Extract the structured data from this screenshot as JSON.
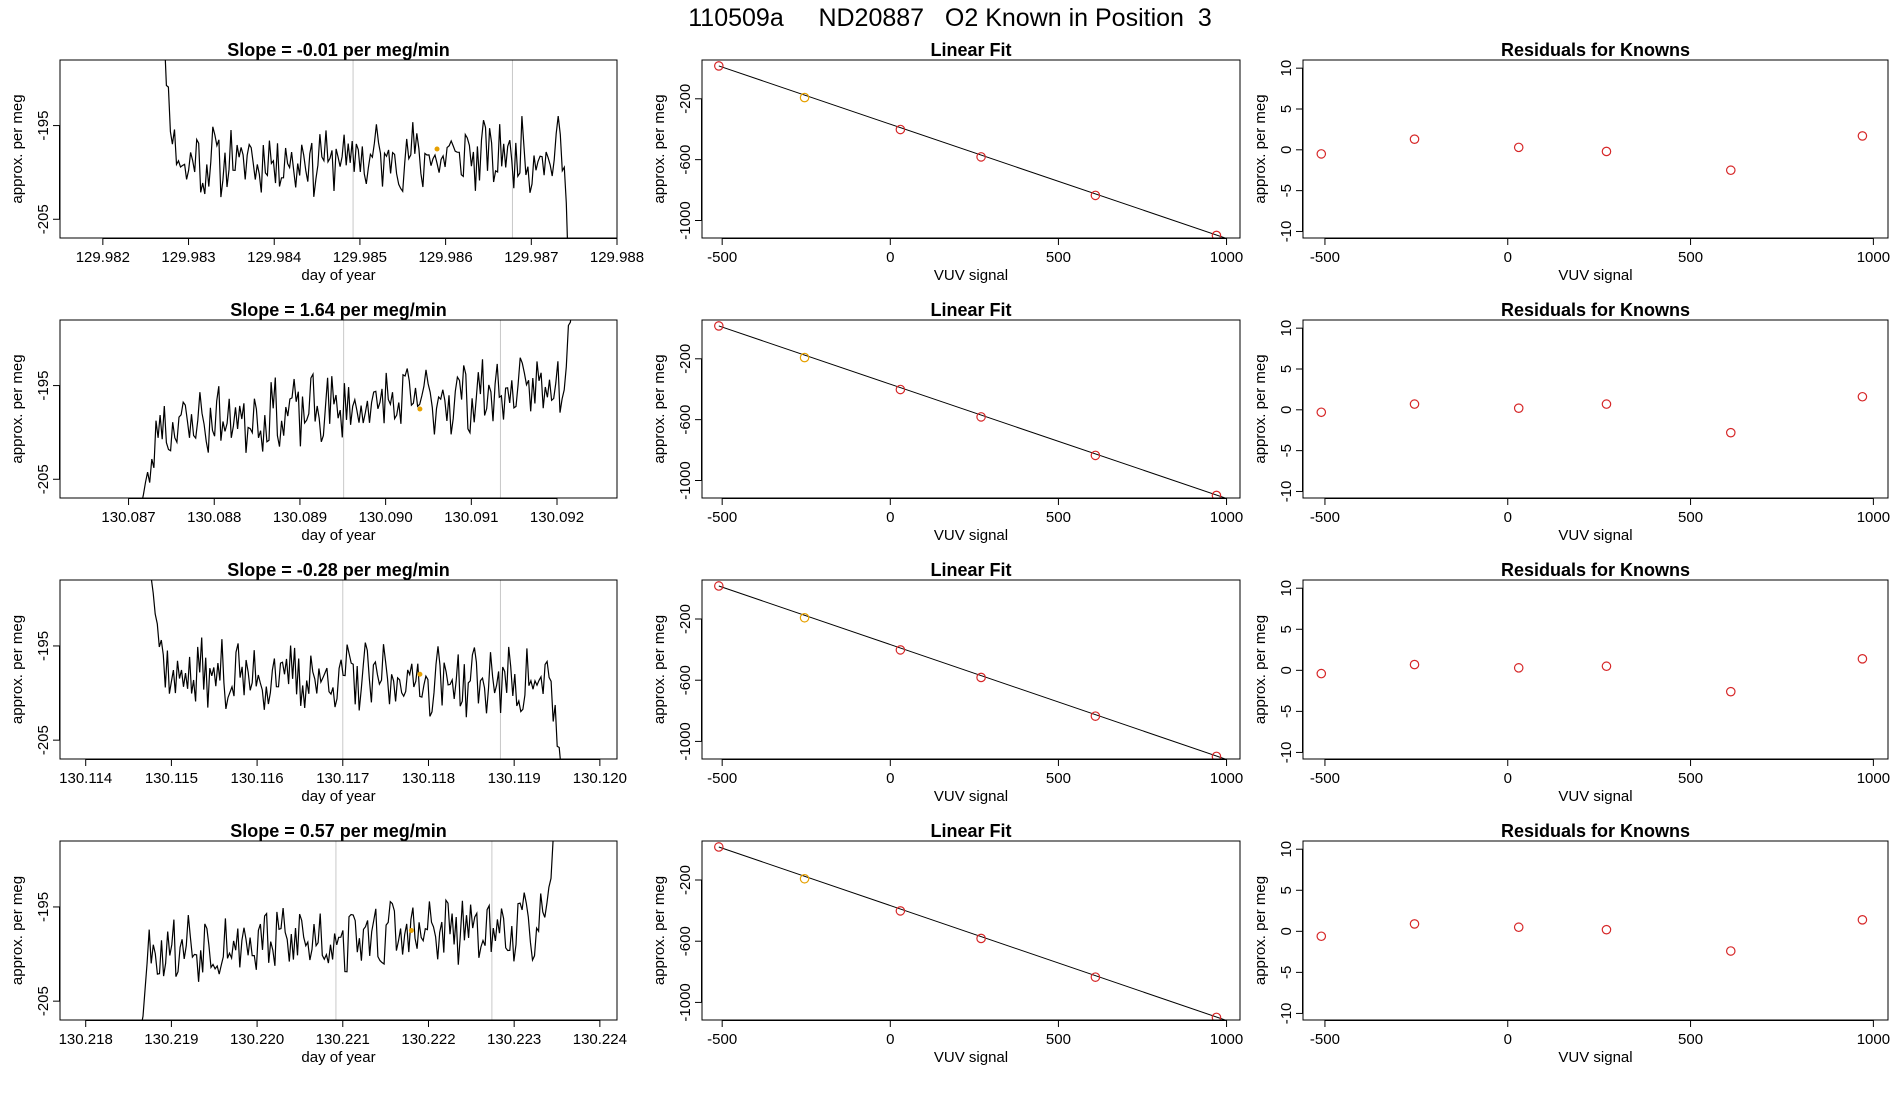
{
  "page": {
    "title": "110509a     ND20887   O2 Known in Position  3"
  },
  "colors": {
    "line": "#000000",
    "known_point": "#d62728",
    "highlight_point": "#e6a000",
    "marker_line": "#c8c8c8",
    "fit_line": "#000000"
  },
  "labels": {
    "trace_ylabel": "approx. per meg",
    "trace_xlabel": "day of year",
    "fit_title": "Linear Fit",
    "fit_xlabel": "VUV signal",
    "fit_ylabel": "approx. per meg",
    "resid_title": "Residuals for Knowns",
    "resid_xlabel": "VUV signal",
    "resid_ylabel": "approx. per meg"
  },
  "chart_data": [
    {
      "type": "line",
      "title": "Slope =  -0.01  per meg/min",
      "xlabel": "day of year",
      "ylabel": "approx. per meg",
      "xlim": [
        129.9815,
        129.988
      ],
      "ylim": [
        -207,
        -188
      ],
      "xticks": [
        129.982,
        129.983,
        129.984,
        129.985,
        129.986,
        129.987,
        129.988
      ],
      "xtick_labels": [
        "129.982",
        "129.983",
        "129.984",
        "129.985",
        "129.986",
        "129.987",
        "129.988"
      ],
      "yticks": [
        -195,
        -205
      ],
      "ytick_labels": [
        "-195",
        "-205"
      ],
      "x_start": 129.9826,
      "x_end": 129.98755,
      "y_start": -175,
      "y_end": -230,
      "seed": 11,
      "baseline_start": -199,
      "baseline_end": -198,
      "vlines": [
        129.98492,
        129.98678
      ],
      "marker": {
        "x": 129.9859,
        "y": -197.5
      }
    },
    {
      "type": "line",
      "title": "Slope =  1.64  per meg/min",
      "xlabel": "day of year",
      "ylabel": "approx. per meg",
      "xlim": [
        130.0862,
        130.0927
      ],
      "ylim": [
        -207,
        -188
      ],
      "xticks": [
        130.087,
        130.088,
        130.089,
        130.09,
        130.091,
        130.092
      ],
      "xtick_labels": [
        "130.087",
        "130.088",
        "130.089",
        "130.090",
        "130.091",
        "130.092"
      ],
      "yticks": [
        -195,
        -205
      ],
      "ytick_labels": [
        "-195",
        "-205"
      ],
      "x_start": 130.0871,
      "x_end": 130.09223,
      "y_start": -210,
      "y_end": -182,
      "seed": 23,
      "baseline_start": -199.5,
      "baseline_end": -195,
      "vlines": [
        130.08951,
        130.09134
      ],
      "marker": {
        "x": 130.0904,
        "y": -197.5
      }
    },
    {
      "type": "line",
      "title": "Slope =  -0.28  per meg/min",
      "xlabel": "day of year",
      "ylabel": "approx. per meg",
      "xlim": [
        130.1137,
        130.1202
      ],
      "ylim": [
        -207,
        -188
      ],
      "xticks": [
        130.114,
        130.115,
        130.116,
        130.117,
        130.118,
        130.119,
        130.12
      ],
      "xtick_labels": [
        "130.114",
        "130.115",
        "130.116",
        "130.117",
        "130.118",
        "130.119",
        "130.120"
      ],
      "yticks": [
        -195,
        -205
      ],
      "ytick_labels": [
        "-195",
        "-205"
      ],
      "x_start": 130.11467,
      "x_end": 130.11962,
      "y_start": -180,
      "y_end": -215,
      "seed": 37,
      "baseline_start": -198,
      "baseline_end": -199,
      "vlines": [
        130.117,
        130.11884
      ],
      "marker": {
        "x": 130.1179,
        "y": -198.0
      }
    },
    {
      "type": "line",
      "title": "Slope =  0.57  per meg/min",
      "xlabel": "day of year",
      "ylabel": "approx. per meg",
      "xlim": [
        130.2177,
        130.2242
      ],
      "ylim": [
        -207,
        -188
      ],
      "xticks": [
        130.218,
        130.219,
        130.22,
        130.221,
        130.222,
        130.223,
        130.224
      ],
      "xtick_labels": [
        "130.218",
        "130.219",
        "130.220",
        "130.221",
        "130.222",
        "130.223",
        "130.224"
      ],
      "yticks": [
        -195,
        -205
      ],
      "ytick_labels": [
        "-195",
        "-205"
      ],
      "x_start": 130.2185,
      "x_end": 130.22355,
      "y_start": -215,
      "y_end": -180,
      "seed": 53,
      "baseline_start": -199.5,
      "baseline_end": -197,
      "vlines": [
        130.22092,
        130.22274
      ],
      "marker": {
        "x": 130.2218,
        "y": -197.5
      }
    },
    {
      "type": "scatter",
      "title": "Linear Fit",
      "xlabel": "VUV signal",
      "ylabel": "approx. per meg",
      "xlim": [
        -560,
        1040
      ],
      "ylim": [
        -1115,
        55
      ],
      "xticks": [
        -500,
        0,
        500,
        1000
      ],
      "xtick_labels": [
        "-500",
        "0",
        "500",
        "1000"
      ],
      "yticks": [
        -200,
        -600,
        -1000
      ],
      "ytick_labels": [
        "-200",
        "-600",
        "-1000"
      ],
      "x": [
        -510,
        -255,
        30,
        270,
        610,
        970
      ],
      "y": [
        16,
        -192,
        -402,
        -582,
        -835,
        -1098
      ],
      "highlight_index": 1,
      "fit": {
        "x": [
          -510,
          1000
        ],
        "y": [
          16,
          -1118
        ]
      }
    },
    {
      "type": "scatter",
      "title": "Linear Fit",
      "xlabel": "VUV signal",
      "ylabel": "approx. per meg",
      "xlim": [
        -560,
        1040
      ],
      "ylim": [
        -1115,
        55
      ],
      "xticks": [
        -500,
        0,
        500,
        1000
      ],
      "xtick_labels": [
        "-500",
        "0",
        "500",
        "1000"
      ],
      "yticks": [
        -200,
        -600,
        -1000
      ],
      "ytick_labels": [
        "-200",
        "-600",
        "-1000"
      ],
      "x": [
        -510,
        -255,
        30,
        270,
        610,
        970
      ],
      "y": [
        16,
        -192,
        -402,
        -582,
        -835,
        -1098
      ],
      "highlight_index": 1,
      "fit": {
        "x": [
          -510,
          1000
        ],
        "y": [
          16,
          -1118
        ]
      }
    },
    {
      "type": "scatter",
      "title": "Linear Fit",
      "xlabel": "VUV signal",
      "ylabel": "approx. per meg",
      "xlim": [
        -560,
        1040
      ],
      "ylim": [
        -1115,
        55
      ],
      "xticks": [
        -500,
        0,
        500,
        1000
      ],
      "xtick_labels": [
        "-500",
        "0",
        "500",
        "1000"
      ],
      "yticks": [
        -200,
        -600,
        -1000
      ],
      "ytick_labels": [
        "-200",
        "-600",
        "-1000"
      ],
      "x": [
        -510,
        -255,
        30,
        270,
        610,
        970
      ],
      "y": [
        16,
        -192,
        -402,
        -582,
        -835,
        -1098
      ],
      "highlight_index": 1,
      "fit": {
        "x": [
          -510,
          1000
        ],
        "y": [
          16,
          -1118
        ]
      }
    },
    {
      "type": "scatter",
      "title": "Linear Fit",
      "xlabel": "VUV signal",
      "ylabel": "approx. per meg",
      "xlim": [
        -560,
        1040
      ],
      "ylim": [
        -1115,
        55
      ],
      "xticks": [
        -500,
        0,
        500,
        1000
      ],
      "xtick_labels": [
        "-500",
        "0",
        "500",
        "1000"
      ],
      "yticks": [
        -200,
        -600,
        -1000
      ],
      "ytick_labels": [
        "-200",
        "-600",
        "-1000"
      ],
      "x": [
        -510,
        -255,
        30,
        270,
        610,
        970
      ],
      "y": [
        16,
        -192,
        -402,
        -582,
        -835,
        -1098
      ],
      "highlight_index": 1,
      "fit": {
        "x": [
          -510,
          1000
        ],
        "y": [
          16,
          -1118
        ]
      }
    },
    {
      "type": "scatter",
      "title": "Residuals for Knowns",
      "xlabel": "VUV signal",
      "ylabel": "approx. per meg",
      "xlim": [
        -560,
        1040
      ],
      "ylim": [
        -10.8,
        11
      ],
      "xticks": [
        -500,
        0,
        500,
        1000
      ],
      "xtick_labels": [
        "-500",
        "0",
        "500",
        "1000"
      ],
      "yticks": [
        10,
        5,
        0,
        -5,
        -10
      ],
      "ytick_labels": [
        "10",
        "5",
        "0",
        "-5",
        "-10"
      ],
      "x": [
        -510,
        -255,
        30,
        270,
        610,
        970
      ],
      "y": [
        -0.5,
        1.3,
        0.3,
        -0.2,
        -2.5,
        1.7
      ]
    },
    {
      "type": "scatter",
      "title": "Residuals for Knowns",
      "xlabel": "VUV signal",
      "ylabel": "approx. per meg",
      "xlim": [
        -560,
        1040
      ],
      "ylim": [
        -10.8,
        11
      ],
      "xticks": [
        -500,
        0,
        500,
        1000
      ],
      "xtick_labels": [
        "-500",
        "0",
        "500",
        "1000"
      ],
      "yticks": [
        10,
        5,
        0,
        -5,
        -10
      ],
      "ytick_labels": [
        "10",
        "5",
        "0",
        "-5",
        "-10"
      ],
      "x": [
        -510,
        -255,
        30,
        270,
        610,
        970
      ],
      "y": [
        -0.3,
        0.7,
        0.2,
        0.7,
        -2.8,
        1.6
      ]
    },
    {
      "type": "scatter",
      "title": "Residuals for Knowns",
      "xlabel": "VUV signal",
      "ylabel": "approx. per meg",
      "xlim": [
        -560,
        1040
      ],
      "ylim": [
        -10.8,
        11
      ],
      "xticks": [
        -500,
        0,
        500,
        1000
      ],
      "xtick_labels": [
        "-500",
        "0",
        "500",
        "1000"
      ],
      "yticks": [
        10,
        5,
        0,
        -5,
        -10
      ],
      "ytick_labels": [
        "10",
        "5",
        "0",
        "-5",
        "-10"
      ],
      "x": [
        -510,
        -255,
        30,
        270,
        610,
        970
      ],
      "y": [
        -0.4,
        0.7,
        0.3,
        0.5,
        -2.6,
        1.4
      ]
    },
    {
      "type": "scatter",
      "title": "Residuals for Knowns",
      "xlabel": "VUV signal",
      "ylabel": "approx. per meg",
      "xlim": [
        -560,
        1040
      ],
      "ylim": [
        -10.8,
        11
      ],
      "xticks": [
        -500,
        0,
        500,
        1000
      ],
      "xtick_labels": [
        "-500",
        "0",
        "500",
        "1000"
      ],
      "yticks": [
        10,
        5,
        0,
        -5,
        -10
      ],
      "ytick_labels": [
        "10",
        "5",
        "0",
        "-5",
        "-10"
      ],
      "x": [
        -510,
        -255,
        30,
        270,
        610,
        970
      ],
      "y": [
        -0.6,
        0.9,
        0.5,
        0.2,
        -2.4,
        1.4
      ]
    }
  ]
}
